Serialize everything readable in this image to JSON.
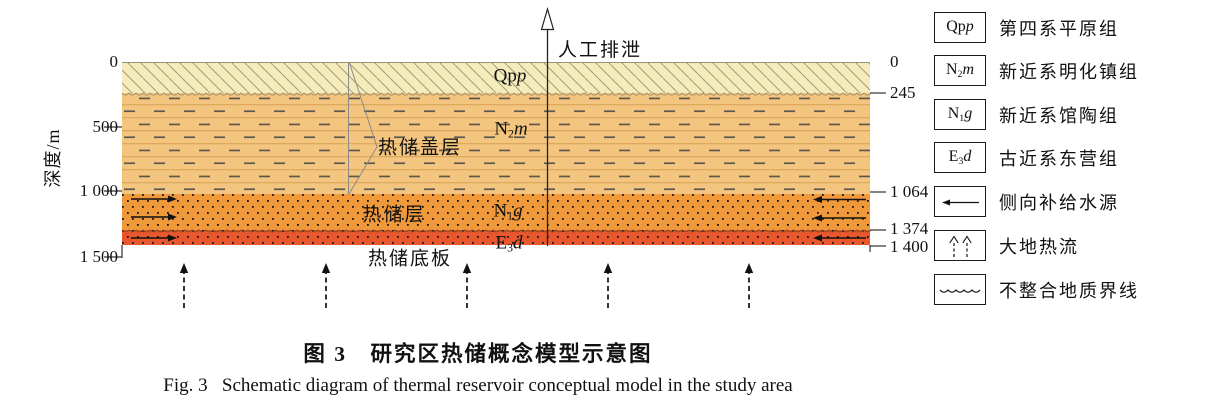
{
  "figure": {
    "caption_zh": "图 3　研究区热储概念模型示意图",
    "caption_en": "Fig. 3   Schematic diagram of thermal reservoir conceptual model in the study area"
  },
  "axis": {
    "label": "深度/m",
    "left_ticks": [
      "0",
      "500",
      "1 000",
      "1 500"
    ],
    "right_ticks": [
      "0",
      "245",
      "1 064",
      "1 374",
      "1 400"
    ],
    "boundaries_m": [
      0,
      245,
      1064,
      1374,
      1400
    ]
  },
  "layers": [
    {
      "code_base": "Qp",
      "code_sub": "",
      "code_it": "p",
      "legend_label": "第四系平原组",
      "fill": "#f4edbb",
      "pattern": "diagonal-hatch"
    },
    {
      "code_base": "N",
      "code_sub": "2",
      "code_it": "m",
      "legend_label": "新近系明化镇组",
      "fill": "#f3c57f",
      "pattern": "horizontal-lines-and-dashes"
    },
    {
      "code_base": "N",
      "code_sub": "1",
      "code_it": "g",
      "legend_label": "新近系馆陶组",
      "fill": "#f0993a",
      "pattern": "dots"
    },
    {
      "code_base": "E",
      "code_sub": "3",
      "code_it": "d",
      "legend_label": "古近系东营组",
      "fill": "#e8572d",
      "pattern": "dots"
    }
  ],
  "annotations": {
    "discharge": "人工排泄",
    "caprock": "热储盖层",
    "reservoir": "热储层",
    "basement": "热储底板"
  },
  "legend_extra": [
    {
      "symbol": "left-arrow",
      "label": "侧向补给水源"
    },
    {
      "symbol": "dashed-up-arrows",
      "label": "大地热流"
    },
    {
      "symbol": "wavy-line",
      "label": "不整合地质界线"
    }
  ]
}
